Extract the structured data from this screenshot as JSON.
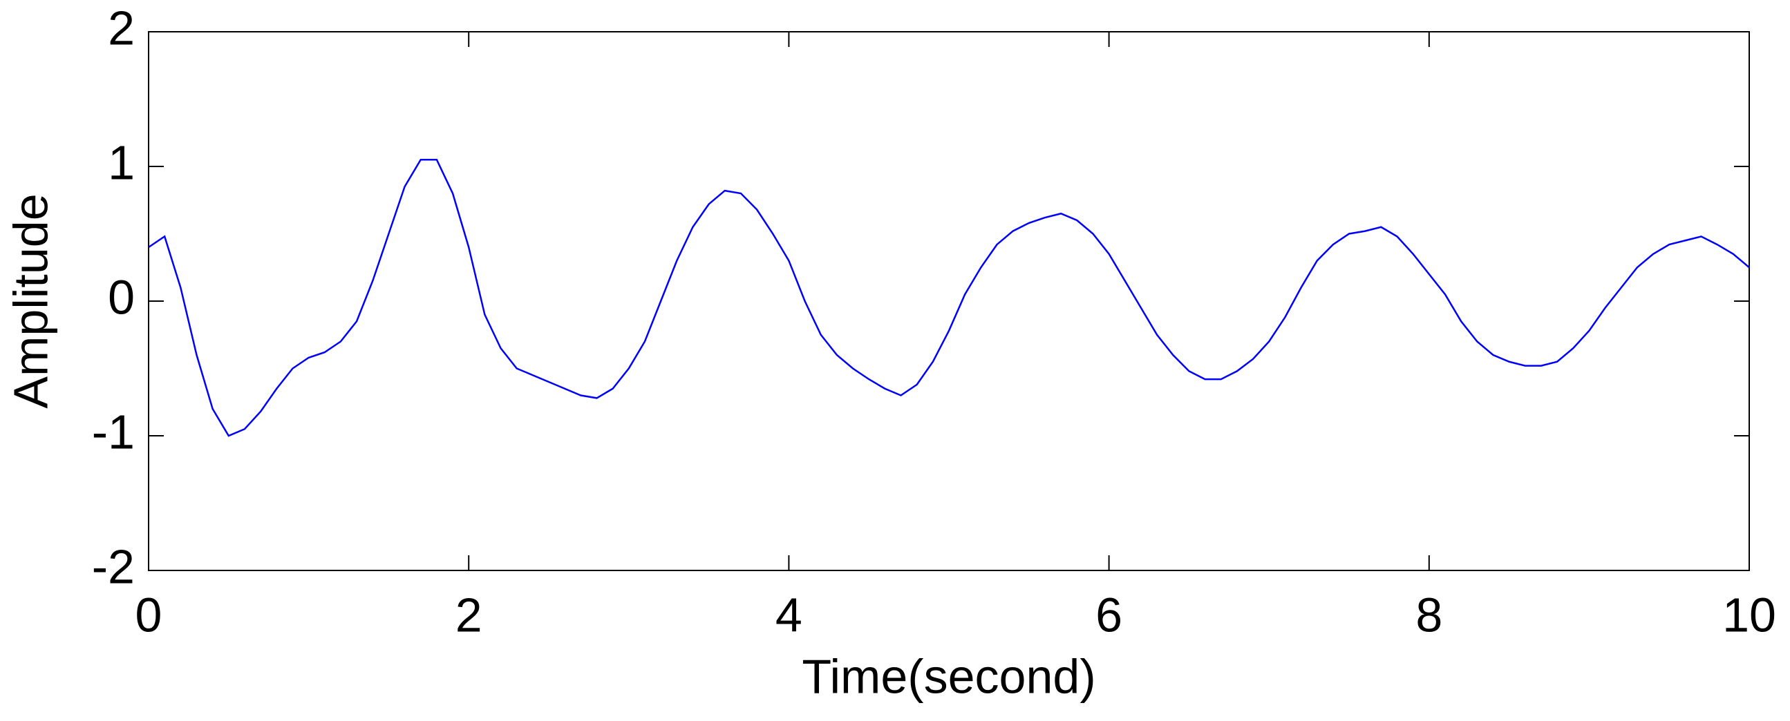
{
  "chart_data": {
    "type": "line",
    "xlabel": "Time(second)",
    "ylabel": "Amplitude",
    "x": [
      0,
      0.1,
      0.2,
      0.3,
      0.4,
      0.5,
      0.6,
      0.7,
      0.8,
      0.9,
      1,
      1.1,
      1.2,
      1.3,
      1.4,
      1.5,
      1.6,
      1.7,
      1.8,
      1.9,
      2,
      2.1,
      2.2,
      2.3,
      2.4,
      2.5,
      2.6,
      2.7,
      2.8,
      2.9,
      3,
      3.1,
      3.2,
      3.3,
      3.4,
      3.5,
      3.6,
      3.7,
      3.8,
      3.9,
      4,
      4.1,
      4.2,
      4.3,
      4.4,
      4.5,
      4.6,
      4.7,
      4.8,
      4.9,
      5,
      5.1,
      5.2,
      5.3,
      5.4,
      5.5,
      5.6,
      5.7,
      5.8,
      5.9,
      6,
      6.1,
      6.2,
      6.3,
      6.4,
      6.5,
      6.6,
      6.7,
      6.8,
      6.9,
      7,
      7.1,
      7.2,
      7.3,
      7.4,
      7.5,
      7.6,
      7.7,
      7.8,
      7.9,
      8,
      8.1,
      8.2,
      8.3,
      8.4,
      8.5,
      8.6,
      8.7,
      8.8,
      8.9,
      9,
      9.1,
      9.2,
      9.3,
      9.4,
      9.5,
      9.6,
      9.7,
      9.8,
      9.9,
      10
    ],
    "series": [
      {
        "color": "#0000ff",
        "values": [
          0.4,
          0.48,
          0.1,
          -0.4,
          -0.8,
          -1.0,
          -0.95,
          -0.82,
          -0.65,
          -0.5,
          -0.42,
          -0.38,
          -0.3,
          -0.15,
          0.15,
          0.5,
          0.85,
          1.05,
          1.05,
          0.8,
          0.4,
          -0.1,
          -0.35,
          -0.5,
          -0.55,
          -0.6,
          -0.65,
          -0.7,
          -0.72,
          -0.65,
          -0.5,
          -0.3,
          0.0,
          0.3,
          0.55,
          0.72,
          0.82,
          0.8,
          0.68,
          0.5,
          0.3,
          0.0,
          -0.25,
          -0.4,
          -0.5,
          -0.58,
          -0.65,
          -0.7,
          -0.62,
          -0.45,
          -0.22,
          0.05,
          0.25,
          0.42,
          0.52,
          0.58,
          0.62,
          0.65,
          0.6,
          0.5,
          0.35,
          0.15,
          -0.05,
          -0.25,
          -0.4,
          -0.52,
          -0.58,
          -0.58,
          -0.52,
          -0.43,
          -0.3,
          -0.12,
          0.1,
          0.3,
          0.42,
          0.5,
          0.52,
          0.55,
          0.48,
          0.35,
          0.2,
          0.05,
          -0.15,
          -0.3,
          -0.4,
          -0.45,
          -0.48,
          -0.48,
          -0.45,
          -0.35,
          -0.22,
          -0.05,
          0.1,
          0.25,
          0.35,
          0.42,
          0.45,
          0.48,
          0.42,
          0.35,
          0.25
        ]
      }
    ],
    "xlim": [
      0,
      10
    ],
    "xticks": [
      0,
      2,
      4,
      6,
      8,
      10
    ],
    "ylim": [
      -2,
      2
    ],
    "yticks": [
      -2,
      -1,
      0,
      1,
      2
    ],
    "grid": false
  }
}
